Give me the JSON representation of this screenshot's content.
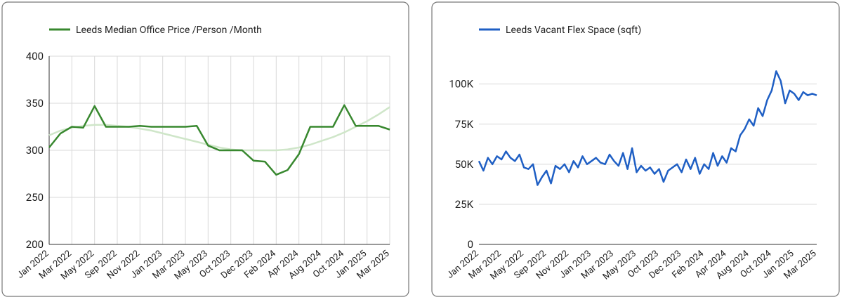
{
  "chart_data": [
    {
      "type": "line",
      "categories": [
        "Jan 2022",
        null,
        "Mar 2022",
        null,
        "May 2022",
        null,
        "Sep 2022",
        null,
        "Nov 2022",
        null,
        "Jan 2023",
        null,
        "Mar 2023",
        null,
        "May 2023",
        null,
        "Oct 2023",
        null,
        "Dec 2023",
        null,
        "Feb 2024",
        null,
        "Apr 2024",
        null,
        "Aug 2024",
        null,
        "Oct 2024",
        null,
        "Jan 2025",
        null,
        "Mar 2025"
      ],
      "series": [
        {
          "name": "Leeds Median Office Price /Person /Month",
          "color": "#38882f",
          "values": [
            303,
            318,
            325,
            324,
            347,
            325,
            325,
            325,
            326,
            325,
            325,
            325,
            325,
            326,
            305,
            300,
            300,
            300,
            289,
            288,
            274,
            279,
            296,
            325,
            325,
            325,
            348,
            326,
            326,
            326,
            322
          ]
        }
      ],
      "trendline": {
        "color": "#cfe6c9",
        "values": [
          316,
          321,
          324,
          326,
          327,
          327,
          326,
          325,
          323,
          321,
          318,
          315,
          312,
          309,
          306,
          303,
          301,
          300,
          300,
          300,
          300,
          301,
          303,
          306,
          310,
          314,
          319,
          325,
          331,
          338,
          346
        ]
      },
      "ylim": [
        200,
        400
      ],
      "yticks": [
        200,
        250,
        300,
        350,
        400
      ],
      "grid": true,
      "xgrid": true
    },
    {
      "type": "line",
      "categories": [
        "Jan 2022",
        null,
        null,
        null,
        null,
        "Mar 2022",
        null,
        null,
        null,
        null,
        "May 2022",
        null,
        null,
        null,
        null,
        "Sep 2022",
        null,
        null,
        null,
        null,
        "Nov 2022",
        null,
        null,
        null,
        null,
        "Jan 2023",
        null,
        null,
        null,
        null,
        "Mar 2023",
        null,
        null,
        null,
        null,
        "May 2023",
        null,
        null,
        null,
        null,
        "Oct 2023",
        null,
        null,
        null,
        null,
        "Dec 2023",
        null,
        null,
        null,
        null,
        "Feb 2024",
        null,
        null,
        null,
        null,
        "Apr 2024",
        null,
        null,
        null,
        null,
        "Aug 2024",
        null,
        null,
        null,
        null,
        "Oct 2024",
        null,
        null,
        null,
        null,
        "Jan 2025",
        null,
        null,
        null,
        null,
        "Mar 2025"
      ],
      "series": [
        {
          "name": "Leeds Vacant Flex Space (sqft)",
          "color": "#1f5fc4",
          "values": [
            52000,
            46000,
            54000,
            50000,
            55000,
            53000,
            58000,
            54000,
            52000,
            56000,
            48000,
            47000,
            50000,
            37000,
            42000,
            46000,
            38000,
            49000,
            47000,
            50000,
            45000,
            52000,
            48000,
            55000,
            50000,
            52000,
            54000,
            51000,
            50000,
            56000,
            52000,
            49000,
            57000,
            47000,
            60000,
            45000,
            49000,
            46000,
            48000,
            44000,
            47000,
            39000,
            46000,
            48000,
            50000,
            45000,
            53000,
            47000,
            54000,
            44000,
            50000,
            47000,
            57000,
            49000,
            55000,
            51000,
            60000,
            58000,
            68000,
            72000,
            78000,
            74000,
            85000,
            80000,
            90000,
            96000,
            108000,
            102000,
            88000,
            96000,
            94000,
            90000,
            95000,
            93000,
            94000,
            93000
          ]
        }
      ],
      "ylim": [
        0,
        120000
      ],
      "yticks": [
        0,
        {
          "value": 25000,
          "label": "25K"
        },
        {
          "value": 50000,
          "label": "50K"
        },
        {
          "value": 75000,
          "label": "75K"
        },
        {
          "value": 100000,
          "label": "100K"
        }
      ],
      "grid": true,
      "xgrid": false
    }
  ]
}
